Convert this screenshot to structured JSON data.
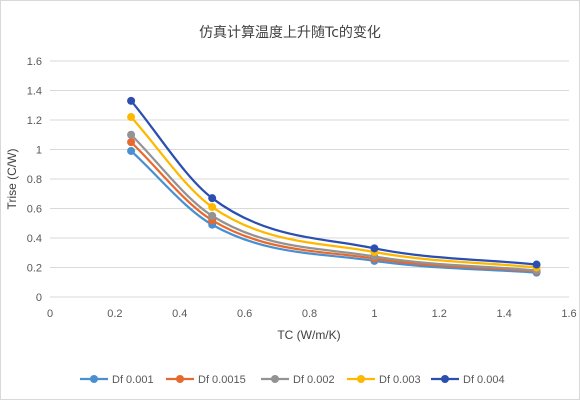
{
  "chart_data": {
    "type": "line",
    "title": "仿真计算温度上升随Tc的变化",
    "xlabel": "TC (W/m/K)",
    "ylabel": "Trise (C/W)",
    "xlim": [
      0,
      1.6
    ],
    "ylim": [
      0,
      1.6
    ],
    "x_ticks": [
      "0",
      "0.2",
      "0.4",
      "0.6",
      "0.8",
      "1",
      "1.2",
      "1.4",
      "1.6"
    ],
    "y_ticks": [
      "0",
      "0.2",
      "0.4",
      "0.6",
      "0.8",
      "1",
      "1.2",
      "1.4",
      "1.6"
    ],
    "grid": "horizontal",
    "smooth": true,
    "legend_position": "bottom",
    "x": [
      0.25,
      0.5,
      1.0,
      1.5
    ],
    "series": [
      {
        "name": "Df 0.001",
        "color": "#4a90d0",
        "values": [
          0.99,
          0.49,
          0.245,
          0.165
        ]
      },
      {
        "name": "Df 0.0015",
        "color": "#e8692e",
        "values": [
          1.05,
          0.52,
          0.26,
          0.175
        ]
      },
      {
        "name": "Df 0.002",
        "color": "#939393",
        "values": [
          1.1,
          0.55,
          0.275,
          0.18
        ]
      },
      {
        "name": "Df 0.003",
        "color": "#ffb800",
        "values": [
          1.22,
          0.61,
          0.305,
          0.2
        ]
      },
      {
        "name": "Df 0.004",
        "color": "#2a4fb0",
        "values": [
          1.33,
          0.67,
          0.33,
          0.22
        ]
      }
    ]
  }
}
